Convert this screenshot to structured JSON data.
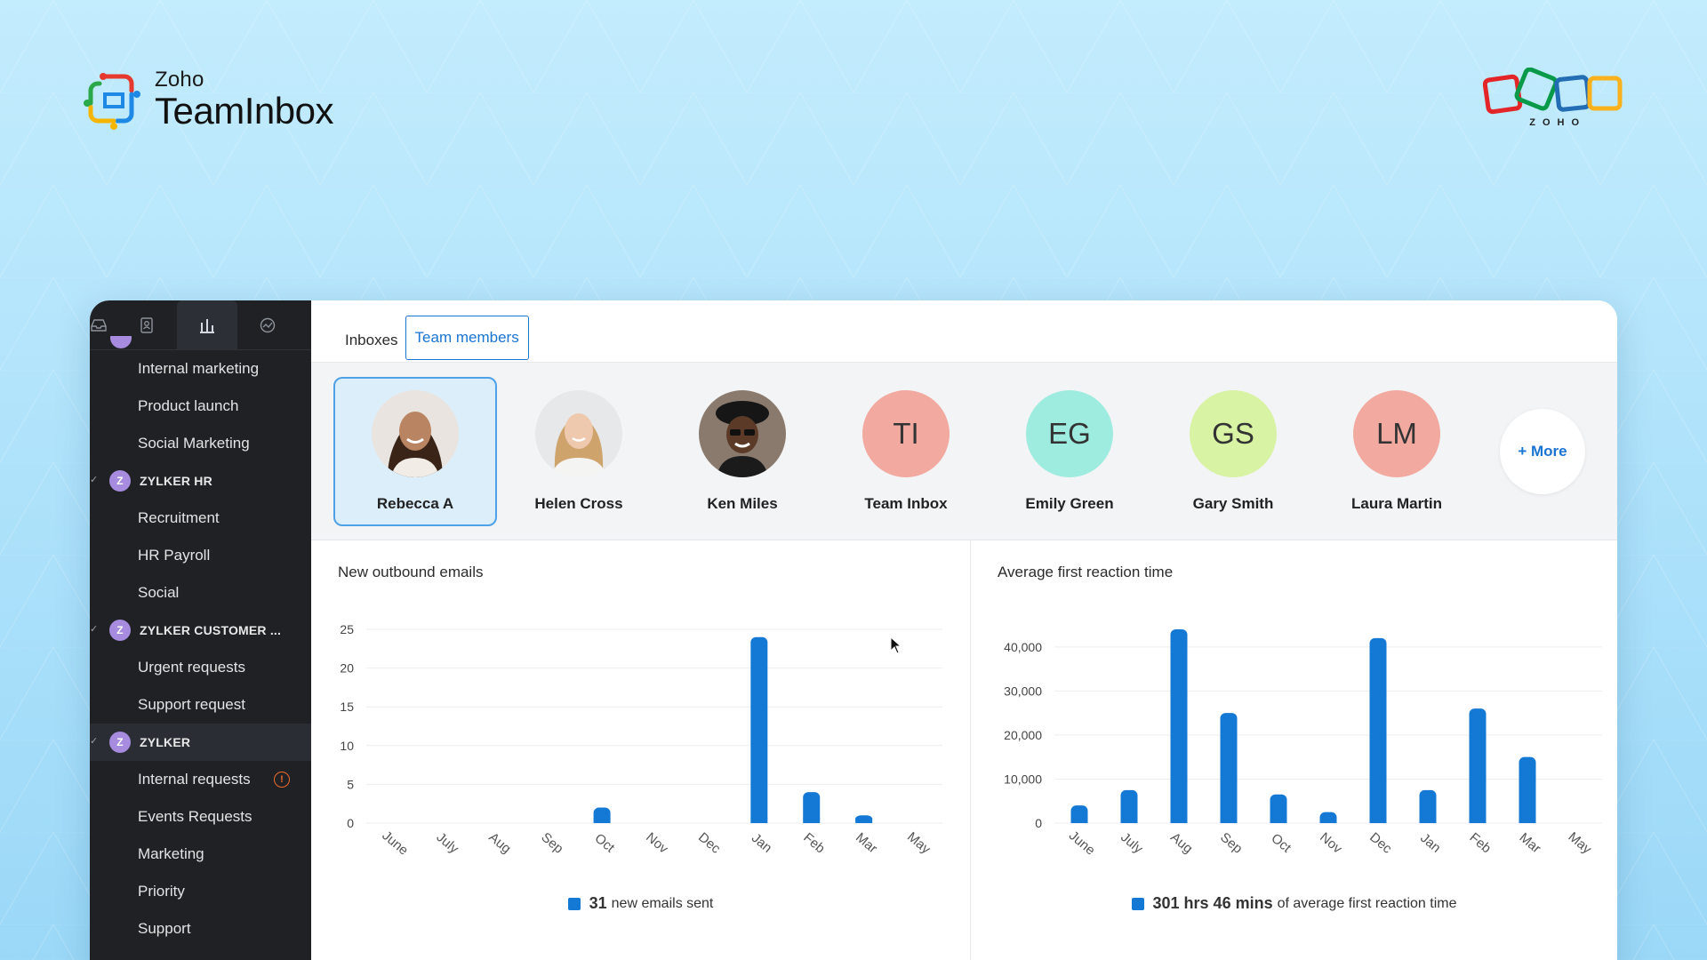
{
  "brand": {
    "zoho": "Zoho",
    "name": "TeamInbox",
    "corner_logo_text": "ZOHO"
  },
  "colors": {
    "accent": "#1a74d2",
    "bar": "#1479d4",
    "sidebar": "#1f2125"
  },
  "sidebar": {
    "tabs": [
      {
        "icon": "inbox-icon"
      },
      {
        "icon": "contacts-icon"
      },
      {
        "icon": "reports-icon",
        "active": true
      },
      {
        "icon": "activity-icon"
      }
    ],
    "groups": [
      {
        "name": "",
        "items": [
          "Internal marketing",
          "Product launch",
          "Social Marketing"
        ]
      },
      {
        "name": "ZYLKER HR",
        "items": [
          "Recruitment",
          "HR Payroll",
          "Social"
        ]
      },
      {
        "name": "ZYLKER CUSTOMER ...",
        "items": [
          "Urgent requests",
          "Support request"
        ]
      },
      {
        "name": "ZYLKER",
        "items": [
          "Internal requests",
          "Events Requests",
          "Marketing",
          "Priority",
          "Support"
        ]
      }
    ],
    "avatar_letter": "Z",
    "warning_glyph": "!"
  },
  "tabs": {
    "inboxes": "Inboxes",
    "team_members": "Team members"
  },
  "members": [
    {
      "name": "Rebecca A",
      "selected": true
    },
    {
      "name": "Helen Cross"
    },
    {
      "name": "Ken Miles"
    },
    {
      "name": "Team Inbox",
      "initials": "TI",
      "color": "#f2a9a0"
    },
    {
      "name": "Emily Green",
      "initials": "EG",
      "color": "#9eece0"
    },
    {
      "name": "Gary Smith",
      "initials": "GS",
      "color": "#d7f3a3"
    },
    {
      "name": "Laura Martin",
      "initials": "LM",
      "color": "#f2a9a0"
    }
  ],
  "more_label": "+ More",
  "chart_data": [
    {
      "type": "bar",
      "title": "New outbound emails",
      "categories": [
        "June",
        "July",
        "Aug",
        "Sep",
        "Oct",
        "Nov",
        "Dec",
        "Jan",
        "Feb",
        "Mar",
        "May"
      ],
      "values": [
        0,
        0,
        0,
        0,
        2,
        0,
        0,
        24,
        4,
        1,
        0
      ],
      "yticks": [
        "25",
        "20",
        "15",
        "10",
        "5",
        "0"
      ],
      "ylim": [
        0,
        25
      ],
      "legend": {
        "value": "31",
        "text": "new emails sent"
      }
    },
    {
      "type": "bar",
      "title": "Average first reaction time",
      "categories": [
        "June",
        "July",
        "Aug",
        "Sep",
        "Oct",
        "Nov",
        "Dec",
        "Jan",
        "Feb",
        "Mar",
        "May"
      ],
      "values": [
        4000,
        7500,
        44000,
        25000,
        6500,
        2500,
        42000,
        7500,
        26000,
        15000,
        0
      ],
      "yticks": [
        "40,000",
        "30,000",
        "20,000",
        "10,000",
        "0"
      ],
      "ylim": [
        0,
        44000
      ],
      "legend": {
        "value": "301 hrs 46 mins",
        "text": "of average first reaction time"
      }
    }
  ]
}
